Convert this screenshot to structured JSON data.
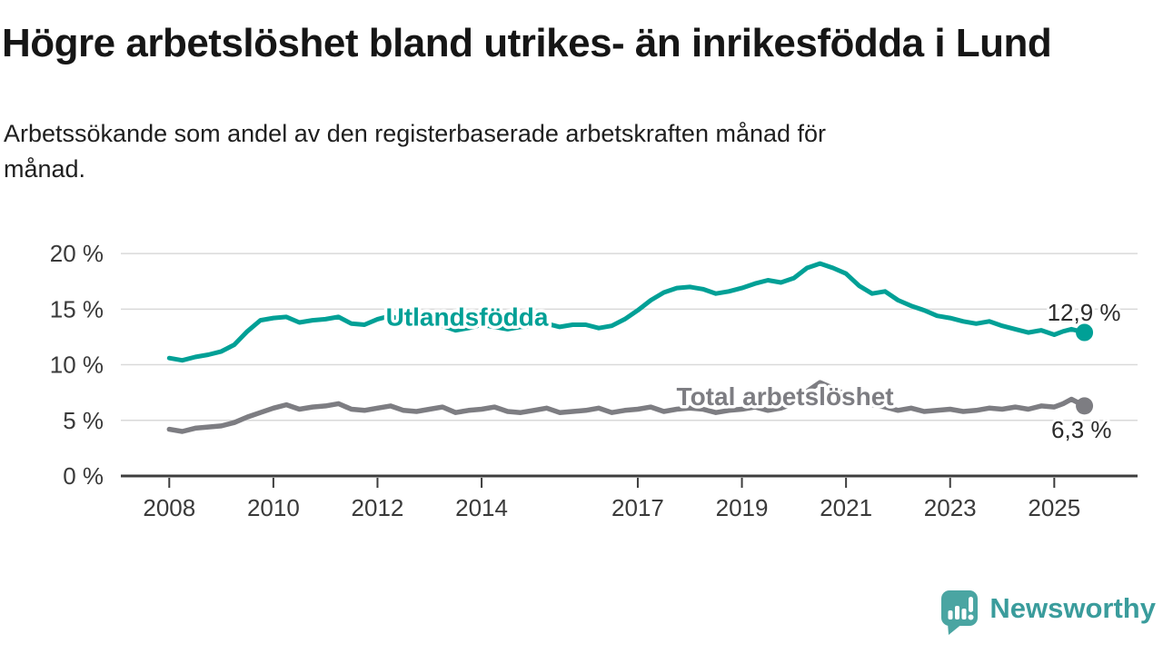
{
  "header": {
    "title": "Högre arbetslöshet bland utrikes- än inrikesfödda i Lund",
    "subtitle_line1": "Arbetssökande som andel av den registerbaserade arbetskraften månad för",
    "subtitle_line2": "månad."
  },
  "branding": {
    "name": "Newsworthy",
    "icon": "bar-chart-speech-bubble-icon",
    "icon_color": "#4aa5a2",
    "text_color": "#3a9c9c"
  },
  "chart_data": {
    "type": "line",
    "title": "",
    "xlabel": "",
    "ylabel": "",
    "grid": "horizontal",
    "legend": "inline-labels",
    "xlim": [
      2007.07,
      2026.6
    ],
    "ylim": [
      0,
      20.5
    ],
    "colors": {
      "grid": "#d9d9d9",
      "axis": "#3d3d3d",
      "tick_text": "#3a3a3a",
      "annotation_text": "#2b2b2b"
    },
    "yticks": {
      "values": [
        0,
        5,
        10,
        15,
        20
      ],
      "labels": [
        "0 %",
        "5 %",
        "10 %",
        "15 %",
        "20 %"
      ]
    },
    "xticks": {
      "values": [
        2008,
        2010,
        2012,
        2014,
        2017,
        2019,
        2021,
        2023,
        2025
      ],
      "labels": [
        "2008",
        "2010",
        "2012",
        "2014",
        "2017",
        "2019",
        "2021",
        "2023",
        "2025"
      ]
    },
    "x": [
      2008,
      2008.25,
      2008.5,
      2008.75,
      2009,
      2009.25,
      2009.5,
      2009.75,
      2010,
      2010.25,
      2010.5,
      2010.75,
      2011,
      2011.25,
      2011.5,
      2011.75,
      2012,
      2012.25,
      2012.5,
      2012.75,
      2013,
      2013.25,
      2013.5,
      2013.75,
      2014,
      2014.25,
      2014.5,
      2014.75,
      2015,
      2015.25,
      2015.5,
      2015.75,
      2016,
      2016.25,
      2016.5,
      2016.75,
      2017,
      2017.25,
      2017.5,
      2017.75,
      2018,
      2018.25,
      2018.5,
      2018.75,
      2019,
      2019.25,
      2019.5,
      2019.75,
      2020,
      2020.25,
      2020.5,
      2020.75,
      2021,
      2021.25,
      2021.5,
      2021.75,
      2022,
      2022.25,
      2022.5,
      2022.75,
      2023,
      2023.25,
      2023.5,
      2023.75,
      2024,
      2024.25,
      2024.5,
      2024.75,
      2025,
      2025.17,
      2025.33,
      2025.58
    ],
    "series": [
      {
        "name": "Utlandsfödda",
        "color": "#00a096",
        "values": [
          10.6,
          10.4,
          10.7,
          10.9,
          11.2,
          11.8,
          13.0,
          14.0,
          14.2,
          14.3,
          13.8,
          14.0,
          14.1,
          14.3,
          13.7,
          13.6,
          14.1,
          14.4,
          13.9,
          13.7,
          13.8,
          13.5,
          13.1,
          13.3,
          13.6,
          13.4,
          13.2,
          13.4,
          13.5,
          13.7,
          13.4,
          13.6,
          13.6,
          13.3,
          13.5,
          14.1,
          14.9,
          15.8,
          16.5,
          16.9,
          17.0,
          16.8,
          16.4,
          16.6,
          16.9,
          17.3,
          17.6,
          17.4,
          17.8,
          18.7,
          19.1,
          18.7,
          18.2,
          17.1,
          16.4,
          16.6,
          15.8,
          15.3,
          14.9,
          14.4,
          14.2,
          13.9,
          13.7,
          13.9,
          13.5,
          13.2,
          12.9,
          13.1,
          12.7,
          13.0,
          13.2,
          12.9
        ],
        "inline_label": "Utlandsfödda",
        "inline_label_pos": {
          "x": 2013.72,
          "y": 14.26
        },
        "end_label": "12,9 %",
        "end_label_side": "above"
      },
      {
        "name": "Total arbetslöshet",
        "color": "#7d7d82",
        "values": [
          4.2,
          4.0,
          4.3,
          4.4,
          4.5,
          4.8,
          5.3,
          5.7,
          6.1,
          6.4,
          6.0,
          6.2,
          6.3,
          6.5,
          6.0,
          5.9,
          6.1,
          6.3,
          5.9,
          5.8,
          6.0,
          6.2,
          5.7,
          5.9,
          6.0,
          6.2,
          5.8,
          5.7,
          5.9,
          6.1,
          5.7,
          5.8,
          5.9,
          6.1,
          5.7,
          5.9,
          6.0,
          6.2,
          5.8,
          6.0,
          6.1,
          6.0,
          5.7,
          5.9,
          6.0,
          6.2,
          5.9,
          6.1,
          6.5,
          7.6,
          8.4,
          7.9,
          7.3,
          6.8,
          6.4,
          6.2,
          5.9,
          6.1,
          5.8,
          5.9,
          6.0,
          5.8,
          5.9,
          6.1,
          6.0,
          6.2,
          6.0,
          6.3,
          6.2,
          6.5,
          6.9,
          6.3
        ],
        "inline_label": "Total arbetslöshet",
        "inline_label_pos": {
          "x": 2019.83,
          "y": 7.1
        },
        "end_label": "6,3 %",
        "end_label_side": "below"
      }
    ]
  }
}
